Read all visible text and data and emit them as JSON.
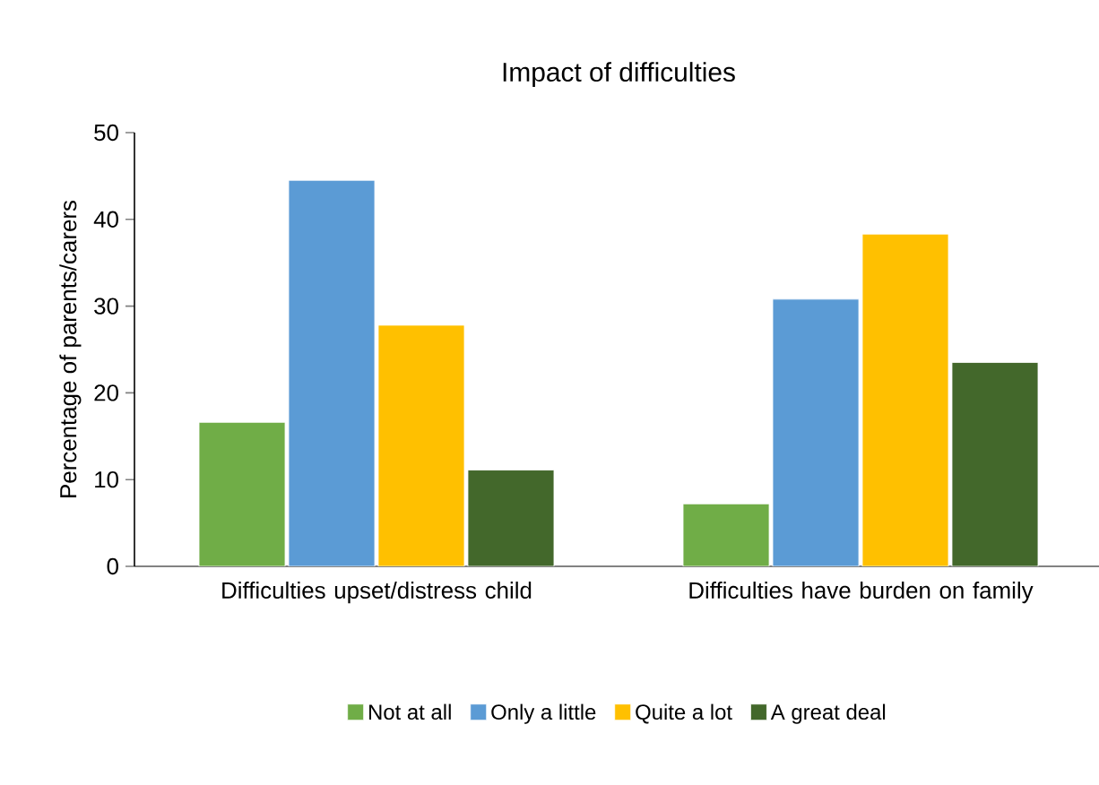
{
  "chart_data": {
    "type": "bar",
    "title": "Impact of difficulties",
    "ylabel": "Percentage of parents/carers",
    "categories": [
      "Difficulties upset/distress child",
      "Difficulties have burden on family"
    ],
    "series": [
      {
        "name": "Not at all",
        "color": "#70ad47",
        "values": [
          16.6,
          7.2
        ]
      },
      {
        "name": "Only a little",
        "color": "#5b9bd5",
        "values": [
          44.5,
          30.8
        ]
      },
      {
        "name": "Quite a lot",
        "color": "#ffc000",
        "values": [
          27.8,
          38.3
        ]
      },
      {
        "name": "A great deal",
        "color": "#43682b",
        "values": [
          11.1,
          23.5
        ]
      }
    ],
    "ylim": [
      0,
      50
    ],
    "yticks": [
      0,
      10,
      20,
      30,
      40,
      50
    ],
    "legend": "bottom",
    "grid": false
  }
}
